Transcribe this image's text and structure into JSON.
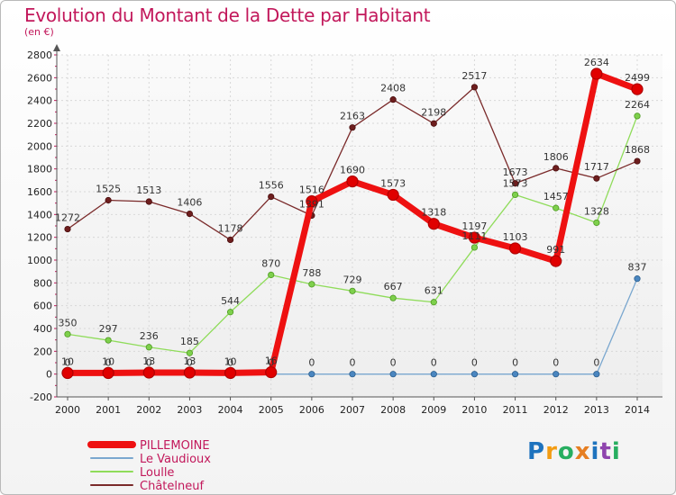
{
  "header": {
    "title": "Evolution du Montant de la Dette par Habitant",
    "subtitle": "(en €)"
  },
  "logo": {
    "letters": [
      {
        "ch": "P",
        "color": "#1e73be"
      },
      {
        "ch": "r",
        "color": "#f39c12"
      },
      {
        "ch": "o",
        "color": "#27ae60"
      },
      {
        "ch": "x",
        "color": "#e67e22"
      },
      {
        "ch": "i",
        "color": "#1e73be"
      },
      {
        "ch": "t",
        "color": "#8e44ad"
      },
      {
        "ch": "i",
        "color": "#27ae60"
      }
    ]
  },
  "chart_data": {
    "type": "line",
    "title": "Evolution du Montant de la Dette par Habitant",
    "subtitle": "(en €)",
    "xlabel": "",
    "ylabel": "",
    "ylim": [
      -200,
      2800
    ],
    "yticks": [
      -200,
      0,
      200,
      400,
      600,
      800,
      1000,
      1200,
      1400,
      1600,
      1800,
      2000,
      2200,
      2400,
      2600,
      2800
    ],
    "categories": [
      "2000",
      "2001",
      "2002",
      "2003",
      "2004",
      "2005",
      "2006",
      "2007",
      "2008",
      "2009",
      "2010",
      "2011",
      "2012",
      "2013",
      "2014"
    ],
    "grid": true,
    "legend_position": "bottom-left",
    "series": [
      {
        "name": "PILLEMOINE",
        "color": "#ee1111",
        "markerColor": "#e00000",
        "markerStroke": "#b00000",
        "values": [
          10,
          10,
          13,
          13,
          10,
          16,
          1516,
          1690,
          1573,
          1318,
          1197,
          1103,
          991,
          2634,
          2499
        ],
        "labels": [
          "10",
          "10",
          "13",
          "13",
          "10",
          "16",
          "1516",
          "1690",
          "1573",
          "1318",
          "1197",
          "1103",
          "991",
          "2634",
          "2499"
        ]
      },
      {
        "name": "Le Vaudioux",
        "color": "#7aa7cf",
        "markerColor": "#4a86c0",
        "markerStroke": "#2c5f8e",
        "values": [
          0,
          0,
          0,
          0,
          0,
          0,
          0,
          0,
          0,
          0,
          0,
          0,
          0,
          0,
          837
        ],
        "labels": [
          "0",
          "0",
          "0",
          "0",
          "0",
          "0",
          "0",
          "0",
          "0",
          "0",
          "0",
          "0",
          "0",
          "0",
          "837"
        ]
      },
      {
        "name": "Loulle",
        "color": "#8fdc5a",
        "markerColor": "#7ed04c",
        "markerStroke": "#4e9a22",
        "values": [
          350,
          297,
          236,
          185,
          544,
          870,
          788,
          729,
          667,
          631,
          1111,
          1573,
          1457,
          1328,
          2264
        ],
        "labels": [
          "350",
          "297",
          "236",
          "185",
          "544",
          "870",
          "788",
          "729",
          "667",
          "631",
          "1111",
          "1573",
          "1457",
          "1328",
          "2264"
        ]
      },
      {
        "name": "Châtelneuf",
        "color": "#7a2a2a",
        "markerColor": "#6e1e1e",
        "markerStroke": "#4a0e0e",
        "values": [
          1272,
          1525,
          1513,
          1406,
          1178,
          1556,
          1391,
          2163,
          2408,
          2198,
          2517,
          1673,
          1806,
          1717,
          1868
        ],
        "labels": [
          "1272",
          "1525",
          "1513",
          "1406",
          "1178",
          "1556",
          "1391",
          "2163",
          "2408",
          "2198",
          "2517",
          "1673",
          "1806",
          "1717",
          "1868"
        ]
      }
    ]
  }
}
